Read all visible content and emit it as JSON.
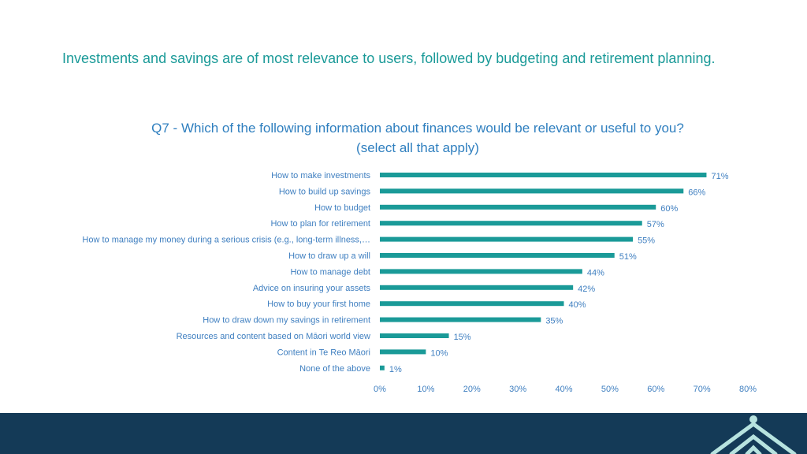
{
  "headline": "Investments and savings are of most relevance to users, followed by budgeting and retirement planning.",
  "colors": {
    "headline": "#1a9a98",
    "question": "#2f7fbf",
    "bar": "#1a9a98",
    "labels": "#3f7fc0",
    "footer": "#143a57",
    "logo": "#b7e3df"
  },
  "footer": {
    "logo_icon": "house-logo-icon"
  },
  "chart_data": {
    "type": "bar",
    "orientation": "horizontal",
    "title": "Q7 - Which of the following information about finances would be relevant or useful to you? (select all that apply)",
    "categories": [
      "How to make investments",
      "How to build up savings",
      "How to budget",
      "How to plan for retirement",
      "How to manage my money during a serious crisis (e.g., long-term illness,…",
      "How to draw up a will",
      "How to manage debt",
      "Advice on insuring your assets",
      "How to buy your first home",
      "How to draw down my savings in retirement",
      "Resources and content based on Māori world view",
      "Content in Te Reo Māori",
      "None of the above"
    ],
    "values": [
      71,
      66,
      60,
      57,
      55,
      51,
      44,
      42,
      40,
      35,
      15,
      10,
      1
    ],
    "value_labels": [
      "71%",
      "66%",
      "60%",
      "57%",
      "55%",
      "51%",
      "44%",
      "42%",
      "40%",
      "35%",
      "15%",
      "10%",
      "1%"
    ],
    "xlim": [
      0,
      80
    ],
    "x_ticks": [
      0,
      10,
      20,
      30,
      40,
      50,
      60,
      70,
      80
    ],
    "x_tick_labels": [
      "0%",
      "10%",
      "20%",
      "30%",
      "40%",
      "50%",
      "60%",
      "70%",
      "80%"
    ],
    "grid": false,
    "legend": "none"
  }
}
